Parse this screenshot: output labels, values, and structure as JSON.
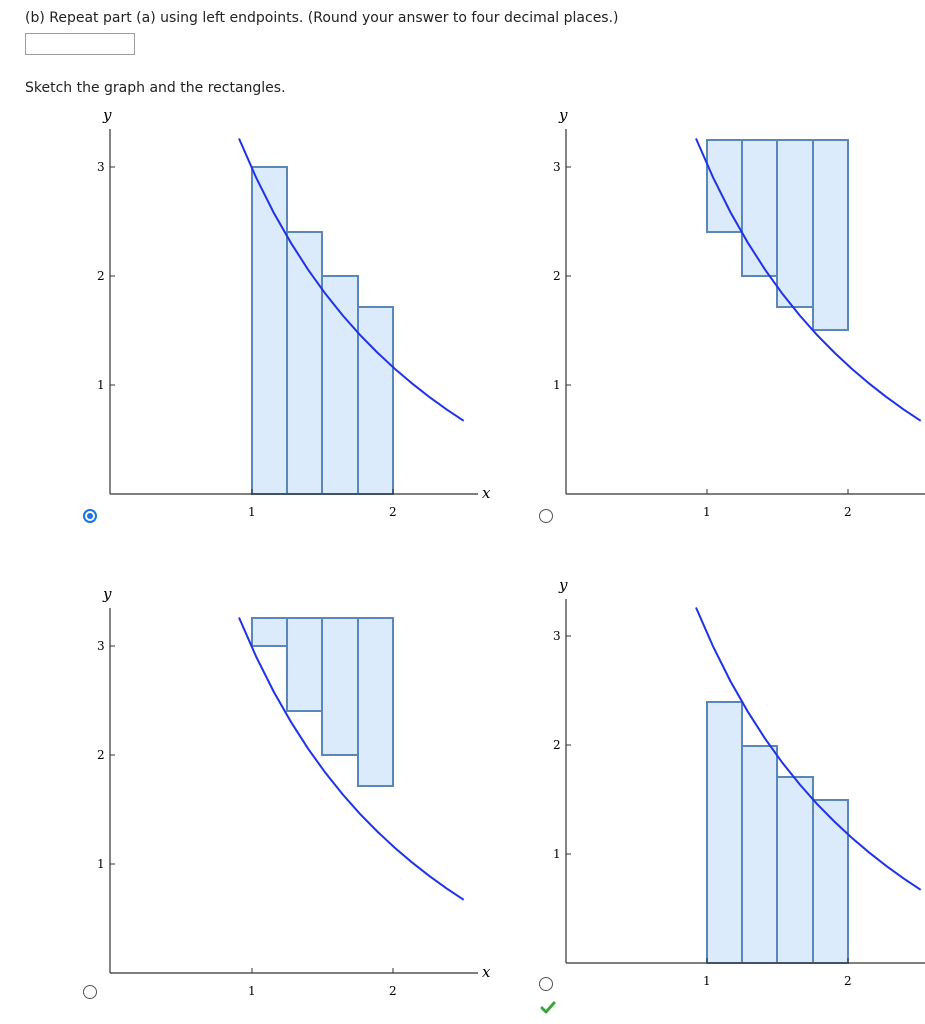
{
  "question": {
    "prompt": "(b) Repeat part (a) using left endpoints. (Round your answer to four decimal places.)",
    "answer_value": "",
    "sketch_instruction": "Sketch the graph and the rectangles."
  },
  "axis_labels": {
    "x": "x",
    "y": "y"
  },
  "colors": {
    "curve": "#1f33e6",
    "rect_fill": "#dcebfb",
    "rect_stroke": "#5a86b8",
    "radio_selected": "#1a73e8",
    "check": "#3aa63a"
  },
  "graphs": [
    {
      "id": "top-left",
      "selected": true,
      "show_x_label": true,
      "show_check": false,
      "y_ticks": [
        "1",
        "2",
        "3"
      ],
      "x_ticks": [
        "1",
        "2"
      ],
      "rect_heights": [
        3.0,
        2.4,
        2.0,
        1.7143
      ]
    },
    {
      "id": "top-right",
      "selected": false,
      "show_x_label": false,
      "show_check": false,
      "y_ticks": [
        "1",
        "2",
        "3"
      ],
      "x_ticks": [
        "1",
        "2"
      ],
      "rect_heights": [
        2.4,
        2.0,
        1.7143,
        1.5
      ]
    },
    {
      "id": "bottom-left",
      "selected": false,
      "show_x_label": true,
      "show_check": false,
      "y_ticks": [
        "1",
        "2",
        "3"
      ],
      "x_ticks": [
        "1",
        "2"
      ],
      "rect_heights": [
        3.0,
        2.4,
        2.0,
        1.7143
      ]
    },
    {
      "id": "bottom-right",
      "selected": false,
      "show_x_label": false,
      "show_check": true,
      "y_ticks": [
        "1",
        "2",
        "3"
      ],
      "x_ticks": [
        "1",
        "2"
      ],
      "rect_heights": [
        2.4,
        2.0,
        1.7143,
        1.5
      ]
    }
  ]
}
